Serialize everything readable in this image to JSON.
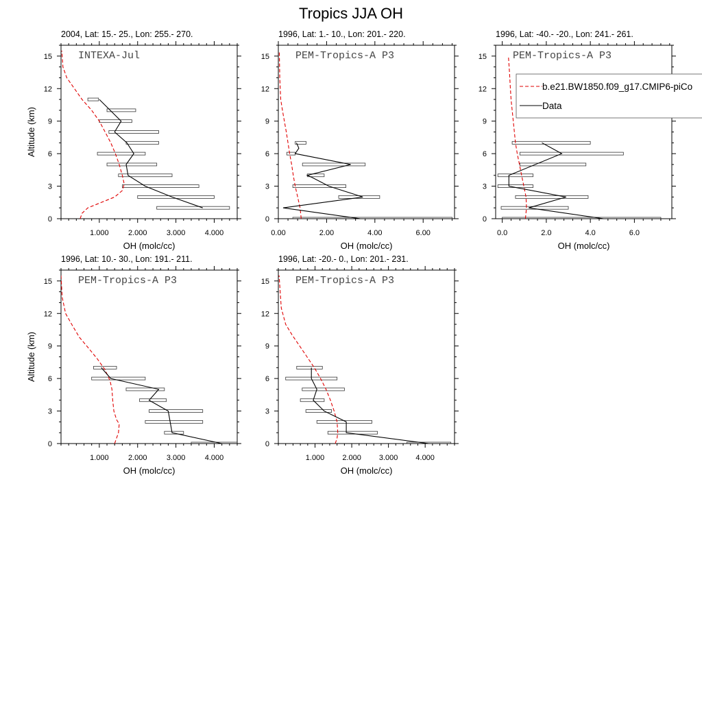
{
  "figure_title": "Tropics JJA OH",
  "legend": {
    "model_label": "b.e21.BW1850.f09_g17.CMIP6-piCo",
    "data_label": "Data",
    "model_color": "#e00000",
    "data_color": "#000000"
  },
  "chart_data": [
    {
      "type": "line",
      "title": "2004, Lat: 15.- 25., Lon: 255.- 270.",
      "campaign": "INTEXA-Jul",
      "xlabel": "OH (molc/cc)",
      "ylabel": "Altitude (km)",
      "xlim": [
        0.0,
        4.6
      ],
      "ylim": [
        0,
        16
      ],
      "xticks": [
        1.0,
        2.0,
        3.0,
        4.0
      ],
      "xtick_labels": [
        "1.000",
        "2.000",
        "3.000",
        "4.000"
      ],
      "yticks": [
        0,
        3,
        6,
        9,
        12,
        15
      ],
      "series": [
        {
          "name": "b.e21.BW1850.f09_g17.CMIP6-piCo",
          "style": "dashed",
          "x": [
            0.5,
            0.55,
            0.7,
            1.05,
            1.4,
            1.6,
            1.65,
            1.6,
            1.52,
            1.42,
            1.3,
            1.15,
            1.0,
            0.8,
            0.55,
            0.35,
            0.15,
            0.05,
            0.02
          ],
          "y": [
            0.0,
            0.5,
            1.0,
            1.5,
            2.0,
            2.6,
            3.2,
            4.0,
            5.0,
            6.0,
            7.0,
            8.0,
            9.0,
            10.0,
            11.0,
            12.0,
            13.0,
            14.0,
            15.5
          ]
        },
        {
          "name": "Data",
          "style": "solid",
          "x": [
            3.7,
            2.9,
            2.2,
            1.75,
            1.7,
            1.9,
            1.72,
            1.4,
            1.57,
            1.0
          ],
          "y": [
            1.0,
            2.0,
            3.0,
            4.0,
            5.0,
            6.0,
            7.0,
            8.0,
            9.0,
            11.0
          ]
        }
      ],
      "ranges": [
        {
          "y": 1.0,
          "min": 2.5,
          "max": 4.4
        },
        {
          "y": 2.0,
          "min": 2.0,
          "max": 4.0
        },
        {
          "y": 3.0,
          "min": 1.6,
          "max": 3.6
        },
        {
          "y": 4.0,
          "min": 1.5,
          "max": 2.9
        },
        {
          "y": 5.0,
          "min": 1.2,
          "max": 2.5
        },
        {
          "y": 6.0,
          "min": 0.95,
          "max": 2.2
        },
        {
          "y": 7.0,
          "min": 1.7,
          "max": 2.55
        },
        {
          "y": 8.0,
          "min": 1.25,
          "max": 2.55
        },
        {
          "y": 9.0,
          "min": 1.0,
          "max": 1.85
        },
        {
          "y": 10.0,
          "min": 1.2,
          "max": 1.95
        },
        {
          "y": 11.0,
          "min": 0.7,
          "max": 0.98
        }
      ]
    },
    {
      "type": "line",
      "title": "1996, Lat: 1.- 10., Lon: 201.- 220.",
      "campaign": "PEM-Tropics-A P3",
      "xlabel": "OH (molc/cc)",
      "ylabel": "",
      "xlim": [
        0.0,
        7.3
      ],
      "ylim": [
        0,
        16
      ],
      "xticks": [
        0.0,
        2.0,
        4.0,
        6.0
      ],
      "xtick_labels": [
        "0.00",
        "2.00",
        "4.00",
        "6.00"
      ],
      "yticks": [
        0,
        3,
        6,
        9,
        12,
        15
      ],
      "series": [
        {
          "name": "b.e21.BW1850.f09_g17.CMIP6-piCo",
          "style": "dashed",
          "x": [
            0.95,
            0.9,
            0.8,
            0.7,
            0.62,
            0.55,
            0.47,
            0.4,
            0.33,
            0.25,
            0.17,
            0.1,
            0.06,
            0.04
          ],
          "y": [
            0.0,
            1.0,
            2.0,
            3.0,
            4.0,
            5.0,
            6.0,
            7.0,
            8.0,
            9.0,
            10.0,
            11.0,
            13.0,
            15.5
          ]
        },
        {
          "name": "Data",
          "style": "solid",
          "x": [
            3.4,
            0.2,
            3.5,
            2.1,
            1.4,
            1.2,
            3.0,
            0.7,
            0.85,
            0.75
          ],
          "y": [
            0.0,
            1.0,
            2.0,
            3.0,
            3.8,
            4.0,
            5.0,
            6.0,
            6.5,
            7.0
          ]
        }
      ],
      "ranges": [
        {
          "y": 0.0,
          "min": 0.6,
          "max": 7.2
        },
        {
          "y": 2.0,
          "min": 2.5,
          "max": 4.2
        },
        {
          "y": 3.0,
          "min": 0.6,
          "max": 2.8
        },
        {
          "y": 4.0,
          "min": 1.2,
          "max": 1.9
        },
        {
          "y": 5.0,
          "min": 1.0,
          "max": 3.6
        },
        {
          "y": 6.0,
          "min": 0.35,
          "max": 0.7
        },
        {
          "y": 7.0,
          "min": 0.7,
          "max": 1.15
        }
      ]
    },
    {
      "type": "line",
      "title": "1996, Lat: -40.- -20., Lon: 241.- 261.",
      "campaign": "PEM-Tropics-A P3",
      "xlabel": "OH (molc/cc)",
      "ylabel": "",
      "xlim": [
        -0.3,
        7.7
      ],
      "ylim": [
        0,
        16
      ],
      "xticks": [
        0.0,
        2.0,
        4.0,
        6.0
      ],
      "xtick_labels": [
        "0.0",
        "2.0",
        "4.0",
        "6.0"
      ],
      "yticks": [
        0,
        3,
        6,
        9,
        12,
        15
      ],
      "series": [
        {
          "name": "b.e21.BW1850.f09_g17.CMIP6-piCo",
          "style": "dashed",
          "x": [
            1.05,
            1.1,
            1.08,
            0.98,
            0.88,
            0.78,
            0.68,
            0.6,
            0.55,
            0.5,
            0.45,
            0.4,
            0.37,
            0.33,
            0.28
          ],
          "y": [
            0.0,
            1.0,
            2.0,
            3.0,
            4.0,
            5.0,
            6.0,
            7.0,
            8.0,
            9.0,
            10.0,
            11.0,
            12.0,
            13.5,
            15.0
          ]
        },
        {
          "name": "Data",
          "style": "solid",
          "x": [
            4.6,
            1.2,
            2.9,
            0.3,
            0.3,
            2.7,
            1.8
          ],
          "y": [
            0.0,
            1.0,
            2.0,
            3.0,
            4.0,
            6.0,
            7.0
          ]
        }
      ],
      "ranges": [
        {
          "y": 0.0,
          "min": 0.0,
          "max": 7.2
        },
        {
          "y": 1.0,
          "min": -0.05,
          "max": 3.0
        },
        {
          "y": 2.0,
          "min": 0.6,
          "max": 3.9
        },
        {
          "y": 3.0,
          "min": -0.2,
          "max": 1.4
        },
        {
          "y": 4.0,
          "min": -0.2,
          "max": 1.4
        },
        {
          "y": 5.0,
          "min": 0.8,
          "max": 3.8
        },
        {
          "y": 6.0,
          "min": 0.8,
          "max": 5.5
        },
        {
          "y": 7.0,
          "min": 0.45,
          "max": 4.0
        }
      ]
    },
    {
      "type": "line",
      "title": "1996, Lat: 10.- 30., Lon: 191.- 211.",
      "campaign": "PEM-Tropics-A P3",
      "xlabel": "OH (molc/cc)",
      "ylabel": "Altitude (km)",
      "xlim": [
        0.0,
        4.6
      ],
      "ylim": [
        0,
        16
      ],
      "xticks": [
        1.0,
        2.0,
        3.0,
        4.0
      ],
      "xtick_labels": [
        "1.000",
        "2.000",
        "3.000",
        "4.000"
      ],
      "yticks": [
        0,
        3,
        6,
        9,
        12,
        15
      ],
      "series": [
        {
          "name": "b.e21.BW1850.f09_g17.CMIP6-piCo",
          "style": "dashed",
          "x": [
            1.4,
            1.5,
            1.52,
            1.45,
            1.38,
            1.35,
            1.33,
            1.28,
            1.15,
            0.95,
            0.72,
            0.48,
            0.28,
            0.12,
            0.03,
            0.0
          ],
          "y": [
            0.0,
            1.0,
            1.8,
            2.2,
            3.0,
            4.0,
            5.0,
            5.8,
            6.8,
            7.8,
            8.8,
            9.8,
            11.0,
            12.0,
            13.5,
            15.5
          ]
        },
        {
          "name": "Data",
          "style": "solid",
          "x": [
            4.2,
            2.9,
            2.85,
            2.8,
            2.3,
            2.55,
            1.3,
            1.05
          ],
          "y": [
            0.0,
            1.0,
            2.0,
            3.0,
            4.0,
            5.0,
            6.0,
            7.0
          ]
        }
      ],
      "ranges": [
        {
          "y": 0.0,
          "min": 3.4,
          "max": 4.6
        },
        {
          "y": 1.0,
          "min": 2.7,
          "max": 3.2
        },
        {
          "y": 2.0,
          "min": 2.2,
          "max": 3.7
        },
        {
          "y": 3.0,
          "min": 2.3,
          "max": 3.7
        },
        {
          "y": 4.0,
          "min": 2.05,
          "max": 2.75
        },
        {
          "y": 5.0,
          "min": 1.7,
          "max": 2.7
        },
        {
          "y": 6.0,
          "min": 0.8,
          "max": 2.2
        },
        {
          "y": 7.0,
          "min": 0.85,
          "max": 1.45
        }
      ]
    },
    {
      "type": "line",
      "title": "1996, Lat: -20.- 0., Lon: 201.- 231.",
      "campaign": "PEM-Tropics-A P3",
      "xlabel": "OH (molc/cc)",
      "ylabel": "",
      "xlim": [
        0.0,
        4.8
      ],
      "ylim": [
        0,
        16
      ],
      "xticks": [
        1.0,
        2.0,
        3.0,
        4.0
      ],
      "xtick_labels": [
        "1.000",
        "2.000",
        "3.000",
        "4.000"
      ],
      "yticks": [
        0,
        3,
        6,
        9,
        12,
        15
      ],
      "series": [
        {
          "name": "b.e21.BW1850.f09_g17.CMIP6-piCo",
          "style": "dashed",
          "x": [
            1.55,
            1.6,
            1.62,
            1.6,
            1.52,
            1.42,
            1.3,
            1.15,
            0.98,
            0.78,
            0.58,
            0.38,
            0.2,
            0.08,
            0.02
          ],
          "y": [
            0.0,
            0.5,
            1.0,
            2.0,
            3.0,
            4.0,
            5.0,
            6.0,
            7.0,
            8.0,
            9.0,
            10.0,
            11.0,
            12.5,
            15.5
          ]
        },
        {
          "name": "Data",
          "style": "solid",
          "x": [
            4.1,
            1.85,
            1.85,
            1.25,
            0.95,
            1.05,
            0.9,
            0.9
          ],
          "y": [
            0.0,
            1.0,
            2.0,
            3.0,
            4.0,
            5.0,
            6.0,
            7.0
          ]
        }
      ],
      "ranges": [
        {
          "y": 0.0,
          "min": 3.5,
          "max": 4.7
        },
        {
          "y": 1.0,
          "min": 1.35,
          "max": 2.7
        },
        {
          "y": 2.0,
          "min": 1.05,
          "max": 2.55
        },
        {
          "y": 3.0,
          "min": 0.75,
          "max": 1.45
        },
        {
          "y": 4.0,
          "min": 0.6,
          "max": 1.25
        },
        {
          "y": 5.0,
          "min": 0.65,
          "max": 1.8
        },
        {
          "y": 6.0,
          "min": 0.2,
          "max": 1.6
        },
        {
          "y": 7.0,
          "min": 0.5,
          "max": 1.2
        }
      ]
    }
  ]
}
